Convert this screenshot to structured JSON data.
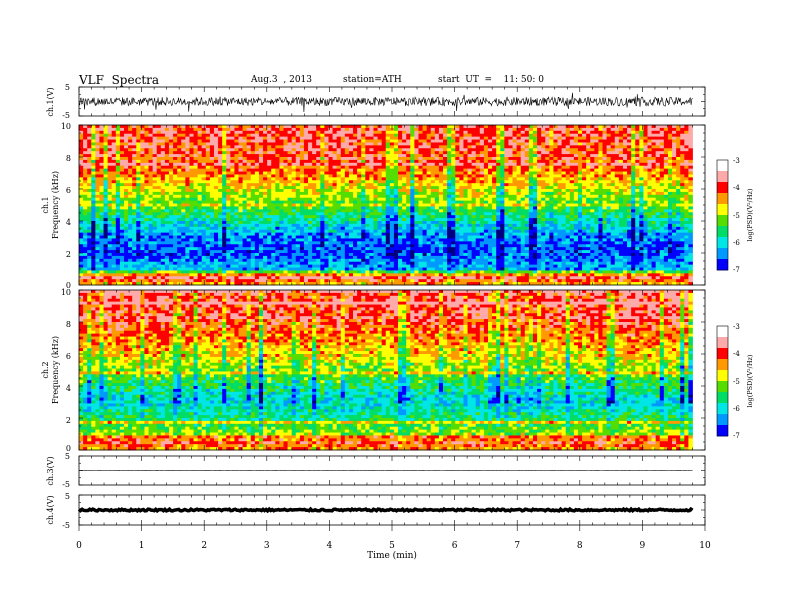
{
  "header": {
    "title": "VLF  Spectra",
    "date": "Aug.3  , 2013",
    "station": "station=ATH",
    "start": "start  UT  =    11: 50: 0"
  },
  "chart_data": [
    {
      "type": "line",
      "panel": "ch1-waveform",
      "ylabel": "ch.1(V)",
      "ylim": [
        -5,
        5
      ],
      "yticks": [
        "5",
        "-5"
      ],
      "xlim": [
        0,
        10
      ],
      "x_end": 9.8,
      "series": [
        {
          "values_description_hidden": "",
          "mean": 0.0,
          "amplitude": 1.5
        }
      ]
    },
    {
      "type": "heatmap",
      "panel": "ch1-spectrogram",
      "ylabel": "Frequency (kHz)",
      "channel_label": "ch.1",
      "ylim": [
        0,
        10
      ],
      "yticks": [
        "0",
        "2",
        "4",
        "6",
        "8",
        "10"
      ],
      "xlim": [
        0,
        10
      ],
      "x_end": 9.8,
      "colorbar": {
        "label": "log(PSD)(V²/Hz)",
        "range": [
          -7,
          -3
        ],
        "ticks": [
          "-3",
          "-4",
          "-5",
          "-6",
          "-7"
        ]
      },
      "profile_khz": [
        [
          0,
          -4.2
        ],
        [
          0.5,
          -3.3
        ],
        [
          1.0,
          -5.8
        ],
        [
          2.0,
          -6.2
        ],
        [
          3.0,
          -6.0
        ],
        [
          4.0,
          -5.4
        ],
        [
          5.0,
          -4.8
        ],
        [
          6.0,
          -4.4
        ],
        [
          7.0,
          -3.9
        ],
        [
          8.0,
          -3.6
        ],
        [
          9.0,
          -3.5
        ],
        [
          10.0,
          -3.5
        ]
      ]
    },
    {
      "type": "heatmap",
      "panel": "ch2-spectrogram",
      "ylabel": "Frequency (kHz)",
      "channel_label": "ch.2",
      "ylim": [
        0,
        10
      ],
      "yticks": [
        "0",
        "2",
        "4",
        "6",
        "8",
        "10"
      ],
      "xlim": [
        0,
        10
      ],
      "x_end": 9.8,
      "colorbar": {
        "label": "log(PSD)(V²/Hz)",
        "range": [
          -7,
          -3
        ],
        "ticks": [
          "-3",
          "-4",
          "-5",
          "-6",
          "-7"
        ]
      },
      "profile_khz": [
        [
          0,
          -4.0
        ],
        [
          0.5,
          -3.5
        ],
        [
          1.0,
          -4.6
        ],
        [
          2.0,
          -5.2
        ],
        [
          3.0,
          -5.6
        ],
        [
          4.0,
          -5.2
        ],
        [
          5.0,
          -4.7
        ],
        [
          6.0,
          -4.3
        ],
        [
          7.0,
          -3.9
        ],
        [
          8.0,
          -3.6
        ],
        [
          9.0,
          -3.5
        ],
        [
          10.0,
          -3.5
        ]
      ]
    },
    {
      "type": "line",
      "panel": "ch3-waveform",
      "ylabel": "ch.3(V)",
      "ylim": [
        -5,
        5
      ],
      "yticks": [
        "5",
        "-5"
      ],
      "xlim": [
        0,
        10
      ],
      "x_end": 9.8,
      "series": [
        {
          "mean": 0.0,
          "amplitude": 0.05
        }
      ]
    },
    {
      "type": "line",
      "panel": "ch4-waveform",
      "ylabel": "ch.4(V)",
      "ylim": [
        -5,
        5
      ],
      "yticks": [
        "5",
        "-5"
      ],
      "xlim": [
        0,
        10
      ],
      "x_end": 9.8,
      "series": [
        {
          "mean": 0.0,
          "amplitude": 0.3
        }
      ]
    }
  ],
  "x_axis": {
    "label": "Time  (min)",
    "ticks": [
      "0",
      "1",
      "2",
      "3",
      "4",
      "5",
      "6",
      "7",
      "8",
      "9",
      "10"
    ]
  },
  "colors": {
    "spectro": [
      "#000080",
      "#0000ff",
      "#0099ff",
      "#00e5e5",
      "#00dd66",
      "#55dd00",
      "#ffff00",
      "#ff9900",
      "#ff0000",
      "#ffaaaa",
      "#ffffff"
    ]
  }
}
